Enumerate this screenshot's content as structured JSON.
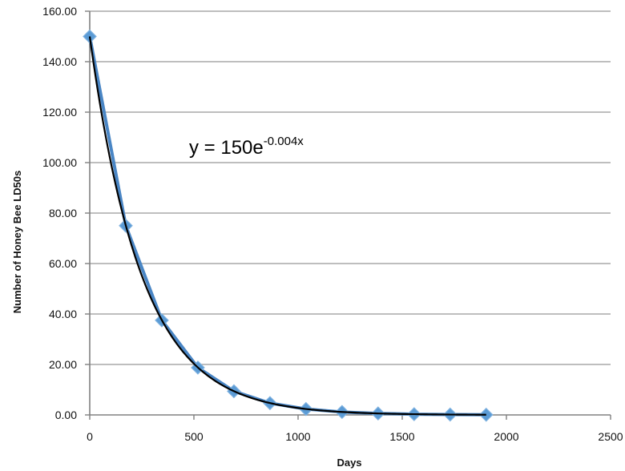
{
  "chart_data": {
    "type": "scatter",
    "title": "",
    "xlabel": "Days",
    "ylabel": "Number of Honey Bee LD50s",
    "xlim": [
      0,
      2500
    ],
    "ylim": [
      0,
      160
    ],
    "x_ticks": [
      "0",
      "500",
      "1000",
      "1500",
      "2000",
      "2500"
    ],
    "y_ticks": [
      "0.00",
      "20.00",
      "40.00",
      "60.00",
      "80.00",
      "100.00",
      "120.00",
      "140.00",
      "160.00"
    ],
    "grid": "horizontal",
    "legend": "none",
    "series": [
      {
        "marker": "diamond",
        "color": "#5B9BD5",
        "line_color": "#4A86C5",
        "x": [
          0,
          173,
          346,
          519,
          692,
          865,
          1038,
          1211,
          1384,
          1557,
          1730,
          1903
        ],
        "y": [
          150,
          75,
          37.5,
          18.75,
          9.38,
          4.69,
          2.34,
          1.17,
          0.59,
          0.29,
          0.15,
          0.07
        ]
      }
    ],
    "trendline": {
      "type": "exponential",
      "a": 150,
      "b": -0.004,
      "color": "#000000",
      "equation_prefix": "y = 150e",
      "equation_exponent": "-0.004x"
    }
  }
}
